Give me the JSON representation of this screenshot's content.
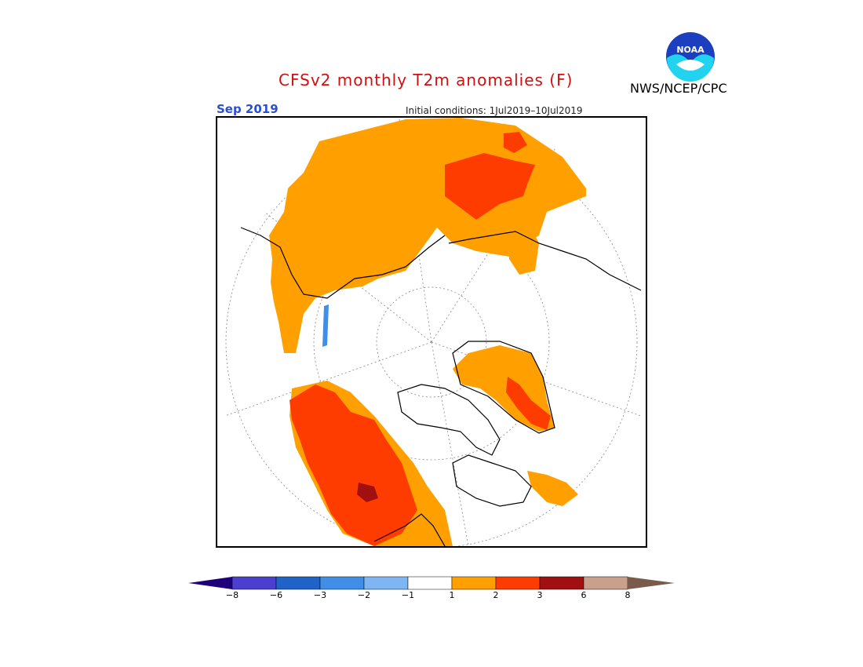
{
  "title": "CFSv2 monthly T2m anomalies (F)",
  "period": "Sep 2019",
  "initial_conditions": "Initial conditions: 1Jul2019–10Jul2019",
  "agency": "NWS/NCEP/CPC",
  "logo_text": "NOAA",
  "colors": {
    "title": "#d01010",
    "period": "#2a4fd0"
  },
  "legend": {
    "tick_labels": [
      "−8",
      "−6",
      "−3",
      "−2",
      "−1",
      "1",
      "2",
      "3",
      "6",
      "8"
    ],
    "colors": [
      "#1e007a",
      "#4b3fcf",
      "#1f63c9",
      "#3f8fe8",
      "#7db6f2",
      "#ffffff",
      "#ffa000",
      "#ff3c00",
      "#a01010",
      "#c8a08c",
      "#7a5a4a"
    ]
  }
}
